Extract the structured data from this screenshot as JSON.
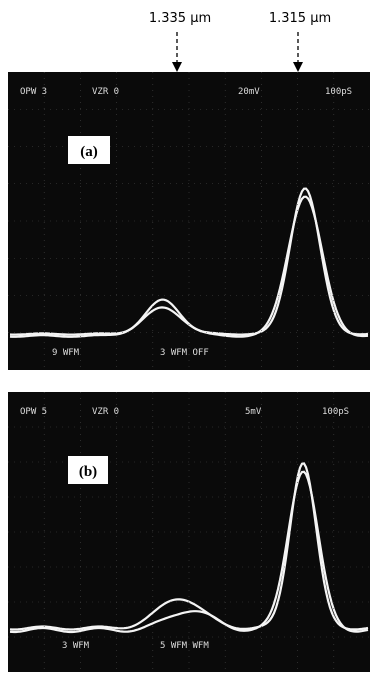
{
  "annotations": [
    "1.335 μm",
    "1.315 μm"
  ],
  "panels": [
    {
      "label": "(a)",
      "header": [
        "OPW 3",
        "VZR 0",
        "20mV",
        "100pS"
      ],
      "footer": [
        "9 WFM",
        "3 WFM OFF"
      ]
    },
    {
      "label": "(b)",
      "header": [
        "OPW 5",
        "VZR 0",
        "5mV",
        "100pS"
      ],
      "footer": [
        "3 WFM",
        "5 WFM WFM"
      ]
    }
  ]
}
